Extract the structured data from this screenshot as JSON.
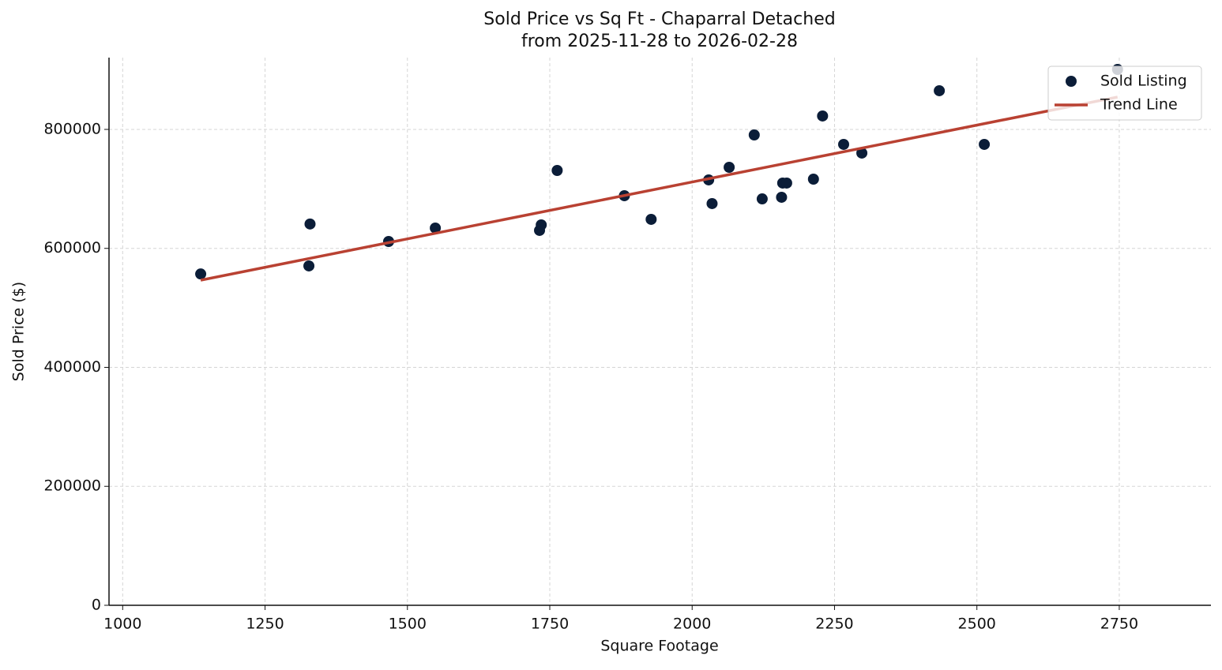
{
  "chart_data": {
    "type": "scatter",
    "title": "Sold Price vs Sq Ft - Chaparral Detached",
    "subtitle": "from 2025-11-28 to 2026-02-28",
    "x_label": "Square Footage",
    "y_label": "Sold Price ($)",
    "xlim": [
      976,
      2911
    ],
    "ylim": [
      0,
      920700
    ],
    "xticks": [
      1000,
      1250,
      1500,
      1750,
      2000,
      2250,
      2500,
      2750
    ],
    "yticks": [
      0,
      200000,
      400000,
      600000,
      800000
    ],
    "grid": true,
    "legend": "upper right",
    "series": [
      {
        "name": "Sold Listing",
        "type": "scatter",
        "color": "#0b1d38",
        "x": [
          1137,
          1329,
          1327,
          1467,
          1549,
          1732,
          1735,
          1763,
          1881,
          1928,
          2029,
          2035,
          2065,
          2109,
          2123,
          2157,
          2159,
          2166,
          2213,
          2229,
          2266,
          2298,
          2434,
          2513,
          2747
        ],
        "values": [
          557000,
          641000,
          570500,
          611600,
          634200,
          630200,
          639500,
          731000,
          688600,
          648800,
          715100,
          675300,
          736300,
          790700,
          683200,
          685900,
          709800,
          709800,
          716400,
          822600,
          774800,
          760200,
          865000,
          774800,
          900800
        ]
      },
      {
        "name": "Trend Line",
        "type": "line",
        "color": "#b94132",
        "x": [
          1137,
          2747
        ],
        "values": [
          546600,
          854400
        ]
      }
    ]
  }
}
